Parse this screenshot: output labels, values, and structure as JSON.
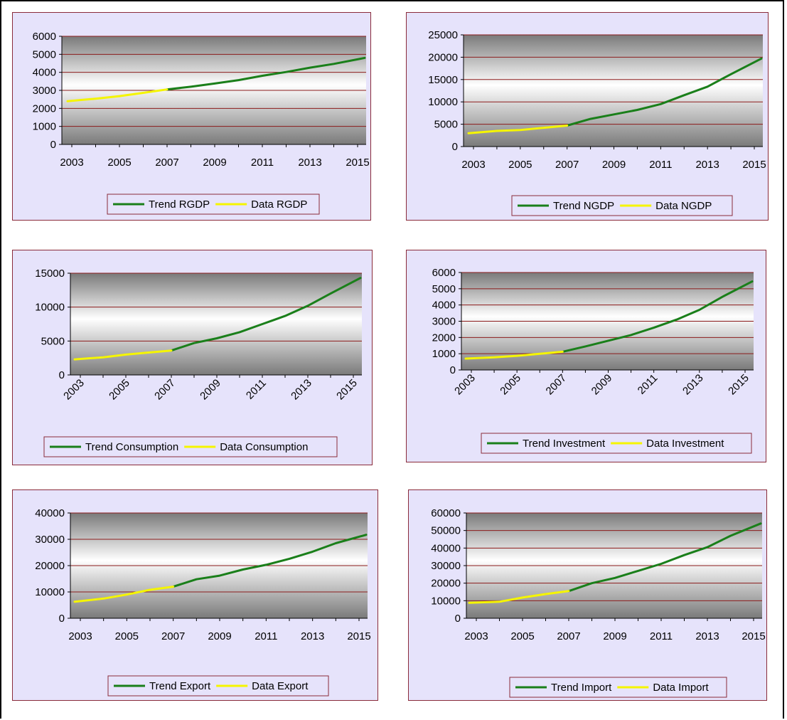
{
  "colors": {
    "panel_fill": "#e6e3fb",
    "panel_border": "#8a2b3a",
    "gridline": "#8b1a1a",
    "trend_line": "#1a7f1a",
    "data_line": "#f5f500",
    "plot_gradient_dark": "#7a7a7a",
    "plot_gradient_light": "#ffffff"
  },
  "chart_data": [
    {
      "type": "line",
      "x_tick_labels": [
        "2003",
        "2005",
        "2007",
        "2009",
        "2011",
        "2013",
        "2015"
      ],
      "x_tick_rotation": 0,
      "ylim": [
        0,
        6000
      ],
      "y_ticks": [
        0,
        1000,
        2000,
        3000,
        4000,
        5000,
        6000
      ],
      "grid": true,
      "legend_position": "bottom",
      "series": [
        {
          "name": "Trend RGDP",
          "color": "trend",
          "x": [
            2007,
            2008,
            2009,
            2010,
            2011,
            2012,
            2013,
            2014,
            2015
          ],
          "values": [
            3050,
            3200,
            3380,
            3570,
            3810,
            4020,
            4260,
            4470,
            4800
          ]
        },
        {
          "name": "Data RGDP",
          "color": "data",
          "x": [
            2003,
            2004,
            2005,
            2006,
            2007
          ],
          "values": [
            2400,
            2540,
            2680,
            2860,
            3050
          ]
        }
      ]
    },
    {
      "type": "line",
      "x_tick_labels": [
        "2003",
        "2005",
        "2007",
        "2009",
        "2011",
        "2013",
        "2015"
      ],
      "x_tick_rotation": 0,
      "ylim": [
        0,
        25000
      ],
      "y_ticks": [
        0,
        5000,
        10000,
        15000,
        20000,
        25000
      ],
      "grid": true,
      "legend_position": "bottom",
      "series": [
        {
          "name": "Trend NGDP",
          "color": "trend",
          "x": [
            2007,
            2008,
            2009,
            2010,
            2011,
            2012,
            2013,
            2014,
            2015
          ],
          "values": [
            4700,
            6200,
            7200,
            8200,
            9500,
            11500,
            13400,
            16200,
            19700
          ]
        },
        {
          "name": "Data NGDP",
          "color": "data",
          "x": [
            2003,
            2004,
            2005,
            2006,
            2007
          ],
          "values": [
            3000,
            3500,
            3700,
            4200,
            4700
          ]
        }
      ]
    },
    {
      "type": "line",
      "x_tick_labels": [
        "2003",
        "2005",
        "2007",
        "2009",
        "2011",
        "2013",
        "2015"
      ],
      "x_tick_rotation": -45,
      "ylim": [
        0,
        15000
      ],
      "y_ticks": [
        0,
        5000,
        10000,
        15000
      ],
      "grid": true,
      "legend_position": "bottom",
      "series": [
        {
          "name": "Trend Consumption",
          "color": "trend",
          "x": [
            2007,
            2008,
            2009,
            2010,
            2011,
            2012,
            2013,
            2014,
            2015
          ],
          "values": [
            3600,
            4700,
            5400,
            6300,
            7500,
            8700,
            10200,
            12000,
            14300
          ]
        },
        {
          "name": "Data Consumption",
          "color": "data",
          "x": [
            2003,
            2004,
            2005,
            2006,
            2007
          ],
          "values": [
            2300,
            2600,
            3000,
            3300,
            3600
          ]
        }
      ]
    },
    {
      "type": "line",
      "x_tick_labels": [
        "2003",
        "2005",
        "2007",
        "2009",
        "2011",
        "2013",
        "2015"
      ],
      "x_tick_rotation": -45,
      "ylim": [
        0,
        6000
      ],
      "y_ticks": [
        0,
        1000,
        2000,
        3000,
        4000,
        5000,
        6000
      ],
      "grid": true,
      "legend_position": "bottom",
      "series": [
        {
          "name": "Trend Investment",
          "color": "trend",
          "x": [
            2007,
            2008,
            2009,
            2010,
            2011,
            2012,
            2013,
            2014,
            2015
          ],
          "values": [
            1120,
            1450,
            1800,
            2150,
            2600,
            3100,
            3700,
            4500,
            5450
          ]
        },
        {
          "name": "Data Investment",
          "color": "data",
          "x": [
            2003,
            2004,
            2005,
            2006,
            2007
          ],
          "values": [
            700,
            780,
            870,
            1000,
            1120
          ]
        }
      ]
    },
    {
      "type": "line",
      "x_tick_labels": [
        "2003",
        "2005",
        "2007",
        "2009",
        "2011",
        "2013",
        "2015"
      ],
      "x_tick_rotation": 0,
      "ylim": [
        0,
        40000
      ],
      "y_ticks": [
        0,
        10000,
        20000,
        30000,
        40000
      ],
      "grid": true,
      "legend_position": "bottom",
      "series": [
        {
          "name": "Trend Export",
          "color": "trend",
          "x": [
            2007,
            2008,
            2009,
            2010,
            2011,
            2012,
            2013,
            2014,
            2015
          ],
          "values": [
            12000,
            14800,
            16200,
            18500,
            20300,
            22600,
            25300,
            28500,
            31700
          ]
        },
        {
          "name": "Data Export",
          "color": "data",
          "x": [
            2003,
            2004,
            2005,
            2006,
            2007
          ],
          "values": [
            6300,
            7500,
            9000,
            10800,
            12000
          ]
        }
      ]
    },
    {
      "type": "line",
      "x_tick_labels": [
        "2003",
        "2005",
        "2007",
        "2009",
        "2011",
        "2013",
        "2015"
      ],
      "x_tick_rotation": 0,
      "ylim": [
        0,
        60000
      ],
      "y_ticks": [
        0,
        10000,
        20000,
        30000,
        40000,
        50000,
        60000
      ],
      "grid": true,
      "legend_position": "bottom",
      "series": [
        {
          "name": "Trend Import",
          "color": "trend",
          "x": [
            2007,
            2008,
            2009,
            2010,
            2011,
            2012,
            2013,
            2014,
            2015
          ],
          "values": [
            15500,
            20000,
            23000,
            27000,
            31000,
            36000,
            40500,
            47000,
            54000
          ]
        },
        {
          "name": "Data Import",
          "color": "data",
          "x": [
            2003,
            2004,
            2005,
            2006,
            2007
          ],
          "values": [
            8800,
            9400,
            11800,
            13800,
            15500
          ]
        }
      ]
    }
  ]
}
